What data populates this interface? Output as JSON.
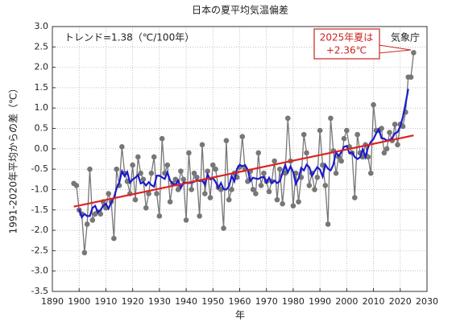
{
  "chart_data": {
    "type": "line",
    "title": "日本の夏平均気温偏差",
    "y_label": "1991-2020年平均からの差（℃）",
    "x_label": "年",
    "annotations": [
      "トレンド=1.38（℃/100年）",
      "2025年夏は",
      "+2.36℃",
      "気象庁"
    ],
    "xlim": [
      1890,
      2030
    ],
    "xticks": [
      1890,
      1900,
      1910,
      1920,
      1930,
      1940,
      1950,
      1960,
      1970,
      1980,
      1990,
      2000,
      2010,
      2020,
      2030
    ],
    "ylim": [
      -3.5,
      3.0
    ],
    "yticks": [
      -3.5,
      {
        "value": -3,
        "label": "-3.0"
      },
      -2.5,
      {
        "value": -2,
        "label": "-2.0"
      },
      -1.5,
      {
        "value": -1,
        "label": "-1.0"
      },
      -0.5,
      {
        "value": 0,
        "label": "0.0"
      },
      0.5,
      {
        "value": 1,
        "label": "1.0"
      },
      1.5,
      {
        "value": 2,
        "label": "2.0"
      },
      2.5,
      {
        "value": 3,
        "label": "3.0"
      }
    ],
    "grid": true,
    "series": [
      {
        "color": "#777777",
        "x": [
          1898,
          1899,
          1900,
          1901,
          1902,
          1903,
          1904,
          1905,
          1906,
          1907,
          1908,
          1909,
          1910,
          1911,
          1912,
          1913,
          1914,
          1915,
          1916,
          1917,
          1918,
          1919,
          1920,
          1921,
          1922,
          1923,
          1924,
          1925,
          1926,
          1927,
          1928,
          1929,
          1930,
          1931,
          1932,
          1933,
          1934,
          1935,
          1936,
          1937,
          1938,
          1939,
          1940,
          1941,
          1942,
          1943,
          1944,
          1945,
          1946,
          1947,
          1948,
          1949,
          1950,
          1951,
          1952,
          1953,
          1954,
          1955,
          1956,
          1957,
          1958,
          1959,
          1960,
          1961,
          1962,
          1963,
          1964,
          1965,
          1966,
          1967,
          1968,
          1969,
          1970,
          1971,
          1972,
          1973,
          1974,
          1975,
          1976,
          1977,
          1978,
          1979,
          1980,
          1981,
          1982,
          1983,
          1984,
          1985,
          1986,
          1987,
          1988,
          1989,
          1990,
          1991,
          1992,
          1993,
          1994,
          1995,
          1996,
          1997,
          1998,
          1999,
          2000,
          2001,
          2002,
          2003,
          2004,
          2005,
          2006,
          2007,
          2008,
          2009,
          2010,
          2011,
          2012,
          2013,
          2014,
          2015,
          2016,
          2017,
          2018,
          2019,
          2020,
          2021,
          2022,
          2023,
          2024,
          2025
        ],
        "values": [
          -0.85,
          -0.9,
          -1.5,
          -1.6,
          -2.55,
          -1.85,
          -0.5,
          -1.75,
          -1.6,
          -1.55,
          -1.6,
          -1.3,
          -1.45,
          -1.1,
          -1.3,
          -2.2,
          -0.5,
          -0.9,
          0.05,
          -0.6,
          -0.8,
          -1.1,
          -0.4,
          -1.25,
          -0.2,
          -0.6,
          -0.75,
          -1.45,
          -1.1,
          -0.6,
          -0.2,
          -1.1,
          -1.65,
          0.25,
          -0.6,
          -0.4,
          -1.3,
          -0.85,
          -0.75,
          -1.0,
          -0.55,
          -0.75,
          -1.75,
          -0.1,
          -1.0,
          -0.6,
          -0.7,
          -1.65,
          0.1,
          -1.1,
          -0.55,
          -1.2,
          -0.4,
          -0.5,
          -0.95,
          -1.0,
          -1.95,
          0.2,
          -1.25,
          -1.0,
          -0.6,
          -0.7,
          -0.45,
          0.3,
          -0.5,
          -0.8,
          -0.55,
          -1.0,
          -1.1,
          -0.1,
          -0.9,
          -0.6,
          -0.8,
          -1.05,
          -0.8,
          -0.3,
          -1.25,
          -0.5,
          -1.35,
          -0.6,
          0.75,
          -0.3,
          -1.4,
          -0.6,
          -1.3,
          -0.7,
          0.35,
          -0.1,
          -0.9,
          -0.6,
          -1.0,
          -0.7,
          0.45,
          -0.4,
          -0.9,
          -1.85,
          0.75,
          -0.05,
          -0.6,
          -0.2,
          -0.3,
          0.25,
          0.45,
          0.05,
          -0.1,
          -1.2,
          0.35,
          -0.1,
          -0.2,
          0.1,
          -0.2,
          -0.6,
          1.08,
          0.45,
          0.45,
          0.5,
          -0.1,
          0.0,
          0.4,
          0.2,
          0.6,
          0.1,
          0.6,
          0.55,
          0.9,
          1.76,
          1.76,
          2.36
        ]
      },
      {
        "color": "#1a1acc",
        "x": [
          1900,
          1901,
          1902,
          1903,
          1904,
          1905,
          1906,
          1907,
          1908,
          1909,
          1910,
          1911,
          1912,
          1913,
          1914,
          1915,
          1916,
          1917,
          1918,
          1919,
          1920,
          1921,
          1922,
          1923,
          1924,
          1925,
          1926,
          1927,
          1928,
          1929,
          1930,
          1931,
          1932,
          1933,
          1934,
          1935,
          1936,
          1937,
          1938,
          1939,
          1940,
          1941,
          1942,
          1943,
          1944,
          1945,
          1946,
          1947,
          1948,
          1949,
          1950,
          1951,
          1952,
          1953,
          1954,
          1955,
          1956,
          1957,
          1958,
          1959,
          1960,
          1961,
          1962,
          1963,
          1964,
          1965,
          1966,
          1967,
          1968,
          1969,
          1970,
          1971,
          1972,
          1973,
          1974,
          1975,
          1976,
          1977,
          1978,
          1979,
          1980,
          1981,
          1982,
          1983,
          1984,
          1985,
          1986,
          1987,
          1988,
          1989,
          1990,
          1991,
          1992,
          1993,
          1994,
          1995,
          1996,
          1997,
          1998,
          1999,
          2000,
          2001,
          2002,
          2003,
          2004,
          2005,
          2006,
          2007,
          2008,
          2009,
          2010,
          2011,
          2012,
          2013,
          2014,
          2015,
          2016,
          2017,
          2018,
          2019,
          2020,
          2021,
          2022,
          2023
        ],
        "values": [
          -1.48,
          -1.68,
          -1.6,
          -1.65,
          -1.65,
          -1.45,
          -1.4,
          -1.56,
          -1.5,
          -1.4,
          -1.35,
          -1.47,
          -1.31,
          -1.2,
          -0.97,
          -0.83,
          -0.55,
          -0.67,
          -0.57,
          -0.83,
          -0.75,
          -0.71,
          -0.64,
          -0.85,
          -0.82,
          -0.9,
          -0.82,
          -0.89,
          -0.93,
          -0.66,
          -0.66,
          -0.7,
          -0.74,
          -0.58,
          -0.78,
          -0.86,
          -0.89,
          -0.78,
          -0.96,
          -0.83,
          -0.83,
          -0.84,
          -0.83,
          -0.81,
          -0.77,
          -0.79,
          -0.78,
          -0.88,
          -0.63,
          -0.75,
          -0.72,
          -0.81,
          -0.96,
          -0.84,
          -0.99,
          -1.0,
          -0.92,
          -0.67,
          -0.8,
          -0.49,
          -0.39,
          -0.43,
          -0.4,
          -0.51,
          -0.79,
          -0.71,
          -0.73,
          -0.74,
          -0.7,
          -0.69,
          -0.83,
          -0.71,
          -0.84,
          -0.78,
          -0.84,
          -0.8,
          -0.59,
          -0.4,
          -0.58,
          -0.43,
          -0.57,
          -0.86,
          -0.73,
          -0.47,
          -0.53,
          -0.39,
          -0.45,
          -0.66,
          -0.55,
          -0.45,
          -0.51,
          -0.68,
          -0.39,
          -0.49,
          -0.53,
          -0.39,
          -0.08,
          -0.18,
          -0.08,
          0.05,
          0.07,
          -0.11,
          -0.09,
          -0.2,
          -0.25,
          -0.21,
          -0.01,
          -0.2,
          0.04,
          0.17,
          0.24,
          0.38,
          0.48,
          0.26,
          0.25,
          0.2,
          0.22,
          0.26,
          0.38,
          0.41,
          0.55,
          0.78,
          1.11,
          1.47
        ]
      },
      {
        "color": "#dd2222",
        "x": [
          1898,
          2025
        ],
        "values": [
          -1.42,
          0.33
        ]
      }
    ]
  }
}
